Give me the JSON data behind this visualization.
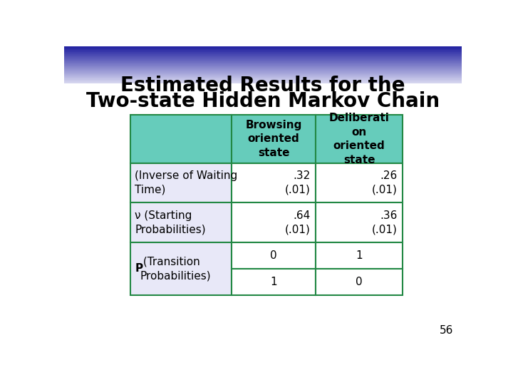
{
  "title_line1": "Estimated Results for the",
  "title_line2": "Two-state Hidden Markov Chain",
  "background_top_color": "#2020a0",
  "background_bottom_color": "#d8d8f0",
  "header_bg": "#66ccbb",
  "row_bg_lavender": "#e8e8f8",
  "table_border_color": "#228844",
  "col_header1": "Browsing\noriented\nstate",
  "col_header2": "Deliberati\non\noriented\nstate",
  "row1_label": "(Inverse of Waiting\nTime)",
  "row2_label_prefix": "ν",
  "row2_label_rest": " (Starting\nProbabilities)",
  "row3_label_bold": "P",
  "row3_label_rest": " (Transition\nProbabilities)",
  "data_r1": [
    ".32\n(.01)",
    ".26\n(.01)"
  ],
  "data_r2": [
    ".64\n(.01)",
    ".36\n(.01)"
  ],
  "data_r3a": [
    "0",
    "1"
  ],
  "data_r3b": [
    "1",
    "0"
  ],
  "page_number": "56",
  "title_fontsize": 20,
  "table_fontsize": 11
}
